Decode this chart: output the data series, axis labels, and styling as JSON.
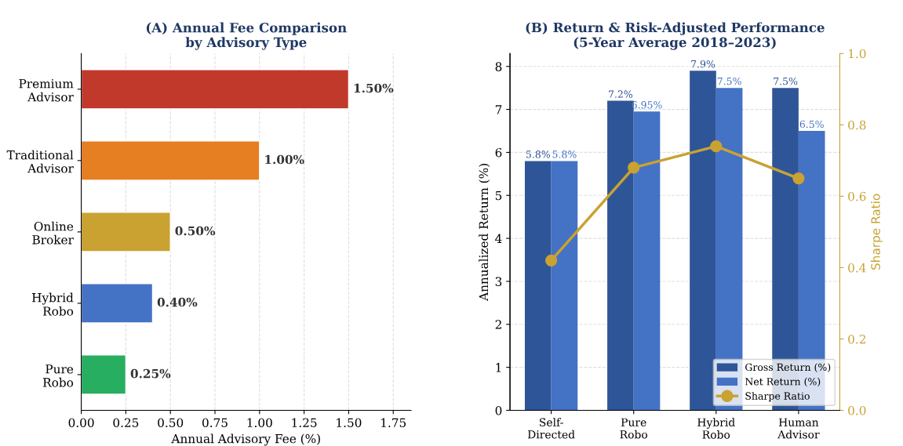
{
  "chart_data": [
    {
      "type": "bar",
      "orientation": "horizontal",
      "title": "(A) Annual Fee Comparison\nby Advisory Type",
      "xlabel": "Annual Advisory Fee (%)",
      "categories": [
        "Premium\nAdvisor",
        "Traditional\nAdvisor",
        "Online\nBroker",
        "Hybrid\nRobo",
        "Pure\nRobo"
      ],
      "values": [
        1.5,
        1.0,
        0.5,
        0.4,
        0.25
      ],
      "colors": [
        "#c0392b",
        "#e67e22",
        "#c9a232",
        "#4472c4",
        "#27ae60"
      ],
      "value_labels": [
        "1.50%",
        "1.00%",
        "0.50%",
        "0.40%",
        "0.25%"
      ],
      "xlim": [
        0,
        1.85
      ],
      "xticks": [
        {
          "value": 0,
          "label": "0.00"
        },
        {
          "value": 0.25,
          "label": "0.25"
        },
        {
          "value": 0.5,
          "label": "0.50"
        },
        {
          "value": 0.75,
          "label": "0.75"
        },
        {
          "value": 1.0,
          "label": "1.00"
        },
        {
          "value": 1.25,
          "label": "1.25"
        },
        {
          "value": 1.5,
          "label": "1.50"
        },
        {
          "value": 1.75,
          "label": "1.75"
        }
      ],
      "grid": "x"
    },
    {
      "type": "bar",
      "title": "(B) Return & Risk-Adjusted Performance\n(5-Year Average 2018–2023)",
      "ylabel": "Annualized Return (%)",
      "y2label": "Sharpe Ratio",
      "categories": [
        "Self-\nDirected",
        "Pure\nRobo",
        "Hybrid\nRobo",
        "Human\nAdvisor"
      ],
      "series": [
        {
          "name": "Gross Return (%)",
          "color": "#2e5597",
          "values": [
            5.8,
            7.2,
            7.9,
            7.5
          ],
          "value_labels": [
            "5.8%",
            "7.2%",
            "7.9%",
            "7.5%"
          ]
        },
        {
          "name": "Net Return (%)",
          "color": "#4472c4",
          "values": [
            5.8,
            6.95,
            7.5,
            6.5
          ],
          "value_labels": [
            "5.8%",
            "6.95%",
            "7.5%",
            "6.5%"
          ]
        },
        {
          "name": "Sharpe Ratio",
          "type": "line",
          "axis": "y2",
          "color": "#c9a232",
          "marker": "circle",
          "values": [
            0.42,
            0.68,
            0.74,
            0.65
          ]
        }
      ],
      "ylim": [
        0,
        8.3
      ],
      "yticks": [
        0,
        1,
        2,
        3,
        4,
        5,
        6,
        7,
        8
      ],
      "y2lim": [
        0,
        1.0
      ],
      "y2ticks": [
        {
          "value": 0,
          "label": "0.0"
        },
        {
          "value": 0.2,
          "label": "0.2"
        },
        {
          "value": 0.4,
          "label": "0.4"
        },
        {
          "value": 0.6,
          "label": "0.6"
        },
        {
          "value": 0.8,
          "label": "0.8"
        },
        {
          "value": 1.0,
          "label": "1.0"
        }
      ],
      "grid": "y",
      "legend": "bottom right"
    }
  ]
}
